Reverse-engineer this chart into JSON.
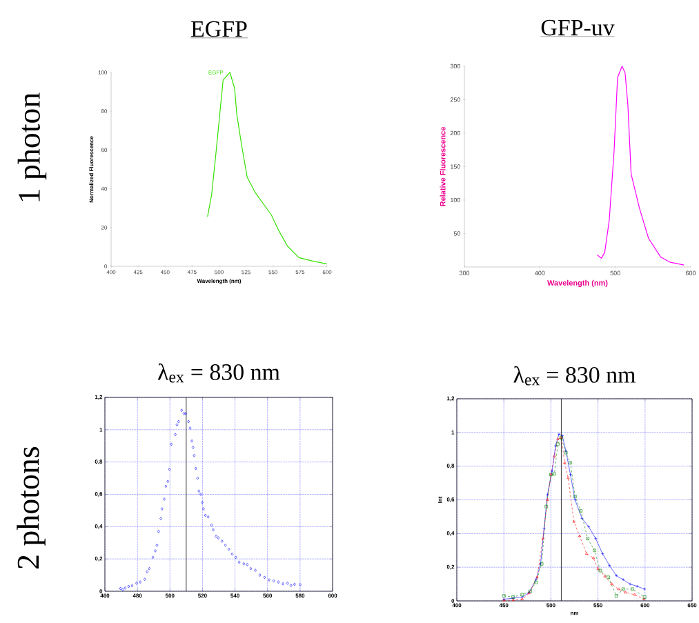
{
  "chart_data": [
    {
      "type": "line",
      "title": "EGFP",
      "xlabel": "Wavelength (nm)",
      "ylabel": "Normalized Fluorescence",
      "annotations": [
        "1 photon"
      ],
      "xlim": [
        400,
        600
      ],
      "xticks": [
        400,
        425,
        450,
        475,
        500,
        525,
        550,
        575,
        600
      ],
      "ylim": [
        0,
        100
      ],
      "yticks": [
        0,
        20,
        40,
        60,
        80,
        100
      ],
      "series": [
        {
          "name": "EGFP",
          "color": "#33e000",
          "x": [
            489.3,
            493.1,
            496.3,
            499.5,
            503.7,
            510,
            514.3,
            516.5,
            520.7,
            526,
            533.5,
            548.4,
            554.7,
            563.2,
            573.9,
            586.6,
            600
          ],
          "values": [
            25.6,
            37,
            54,
            72,
            96,
            100,
            92,
            78,
            63,
            46,
            38,
            26.5,
            19,
            10.5,
            4.5,
            2.7,
            1.2
          ]
        }
      ]
    },
    {
      "type": "line",
      "title": "GFP-uv",
      "xlabel": "Wavelength (nm)",
      "ylabel": "Relative Fluorescence",
      "xlim": [
        300,
        600
      ],
      "xticks": [
        300,
        400,
        500,
        600
      ],
      "ylim": [
        0,
        300
      ],
      "yticks": [
        50,
        100,
        150,
        200,
        250,
        300
      ],
      "series": [
        {
          "color": "#ff00ff",
          "x": [
            476,
            481.6,
            486,
            492,
            498.4,
            503,
            509,
            513,
            516.7,
            521,
            532,
            544,
            560,
            573,
            591
          ],
          "values": [
            18,
            13,
            22,
            70,
            173,
            283,
            300,
            290,
            242,
            139,
            88,
            43,
            15,
            7,
            3
          ]
        }
      ]
    },
    {
      "type": "scatter",
      "title": "λ$_{ex}$ = 830 nm",
      "annotations": [
        "2 photons"
      ],
      "xlim": [
        460,
        600
      ],
      "xticks": [
        460,
        480,
        500,
        520,
        540,
        560,
        580,
        600
      ],
      "ylim": [
        0,
        1.2
      ],
      "yticks": [
        0,
        {
          "value": 0.2,
          "label": "0,2"
        },
        {
          "value": 0.4,
          "label": "0,4"
        },
        {
          "value": 0.6,
          "label": "0,6"
        },
        {
          "value": 0.8,
          "label": "0,8"
        },
        1,
        {
          "value": 1.2,
          "label": "1,2"
        }
      ],
      "grid": true,
      "marker": "diamond",
      "ref_lines": [
        {
          "axis": "x",
          "value": 510
        }
      ],
      "series": [
        {
          "color": "#0000ff",
          "x": [
            469.6,
            471,
            472.5,
            474.6,
            476.7,
            479.5,
            481.7,
            484.5,
            486,
            487.3,
            489.5,
            491,
            492,
            493,
            494.4,
            495.1,
            496.5,
            497.5,
            498.7,
            499.7,
            500.8,
            503.3,
            504.3,
            505.3,
            507.2,
            508.6,
            509.7,
            511.4,
            512.4,
            513.5,
            514.2,
            514.9,
            515.9,
            517,
            517.8,
            518.9,
            519.9,
            520.6,
            521.8,
            523.5,
            525.6,
            526.6,
            528.4,
            529.8,
            532,
            534.1,
            536.2,
            538.3,
            540.5,
            542.6,
            545.4,
            547.5,
            549.7,
            552.5,
            555.3,
            558.2,
            561,
            563.8,
            566.7,
            569.5,
            572.3,
            574.4,
            576.6,
            580.1
          ],
          "values": [
            0.017,
            0.01,
            0.02,
            0.03,
            0.034,
            0.05,
            0.057,
            0.074,
            0.12,
            0.14,
            0.21,
            0.25,
            0.285,
            0.37,
            0.45,
            0.51,
            0.57,
            0.65,
            0.68,
            0.755,
            0.91,
            0.97,
            1.03,
            1.05,
            1.12,
            1.1,
            1.1,
            1.05,
            1.01,
            0.93,
            0.89,
            0.84,
            0.76,
            0.7,
            0.62,
            0.6,
            0.55,
            0.51,
            0.47,
            0.46,
            0.41,
            0.38,
            0.34,
            0.33,
            0.31,
            0.285,
            0.26,
            0.23,
            0.21,
            0.18,
            0.17,
            0.165,
            0.14,
            0.13,
            0.1,
            0.086,
            0.07,
            0.064,
            0.057,
            0.046,
            0.05,
            0.036,
            0.043,
            0.04
          ]
        }
      ]
    },
    {
      "type": "line",
      "title": "λ$_{ex}$ = 830 nm",
      "xlabel": "nm",
      "ylabel": "Int",
      "xlim": [
        400,
        650
      ],
      "xticks": [
        400,
        450,
        500,
        550,
        600,
        650
      ],
      "ylim": [
        0,
        1.2
      ],
      "yticks": [
        0,
        {
          "value": 0.2,
          "label": "0,2"
        },
        {
          "value": 0.4,
          "label": "0,4"
        },
        {
          "value": 0.6,
          "label": "0,6"
        },
        {
          "value": 0.8,
          "label": "0,8"
        },
        1,
        {
          "value": 1.2,
          "label": "1,2"
        }
      ],
      "grid": true,
      "ref_lines": [
        {
          "axis": "x",
          "value": 511
        }
      ],
      "series": [
        {
          "color": "#0000ff",
          "marker": "cross",
          "line_style": "solid",
          "x": [
            450,
            459.8,
            469.5,
            476.8,
            484.1,
            489,
            492.7,
            496.3,
            501.2,
            504.9,
            508.5,
            512.2,
            515.9,
            520.7,
            525.6,
            533,
            540.2,
            547.6,
            554.9,
            562.2,
            569.5,
            576.8,
            584.1,
            591.5,
            599.5
          ],
          "values": [
            0.01,
            0.016,
            0.023,
            0.05,
            0.126,
            0.22,
            0.43,
            0.63,
            0.77,
            0.92,
            0.99,
            0.98,
            0.89,
            0.75,
            0.6,
            0.49,
            0.44,
            0.37,
            0.28,
            0.21,
            0.15,
            0.126,
            0.1,
            0.087,
            0.07
          ]
        },
        {
          "color": "#ff0000",
          "marker": "triangle",
          "line_style": "dashed",
          "x": [
            450,
            460,
            469.5,
            476.8,
            485.4,
            491.5,
            496.3,
            500,
            503.7,
            507.3,
            511,
            514.6,
            518.3,
            524.4,
            530.5,
            537.8,
            545.1,
            550,
            557.3,
            564.6,
            571.9,
            579.3,
            589,
            598.8
          ],
          "values": [
            0.003,
            0.005,
            0.01,
            0.046,
            0.14,
            0.37,
            0.6,
            0.75,
            0.86,
            0.96,
            0.97,
            0.82,
            0.73,
            0.47,
            0.385,
            0.28,
            0.255,
            0.19,
            0.146,
            0.1,
            0.07,
            0.05,
            0.037,
            0.01
          ]
        },
        {
          "color": "#008000",
          "marker": "square",
          "line_style": "dashed",
          "x": [
            450,
            459.8,
            469.5,
            478,
            484,
            490.2,
            495.1,
            500,
            503.7,
            507.3,
            511,
            515.9,
            520.7,
            525.6,
            531.7,
            539,
            546.3,
            552.4,
            561,
            569.5,
            576.8,
            586.6,
            599.5
          ],
          "values": [
            0.03,
            0.023,
            0.037,
            0.057,
            0.11,
            0.22,
            0.56,
            0.75,
            0.754,
            0.93,
            0.97,
            0.88,
            0.82,
            0.62,
            0.535,
            0.37,
            0.3,
            0.18,
            0.14,
            0.03,
            0.07,
            0.07,
            0.023
          ]
        }
      ]
    }
  ]
}
